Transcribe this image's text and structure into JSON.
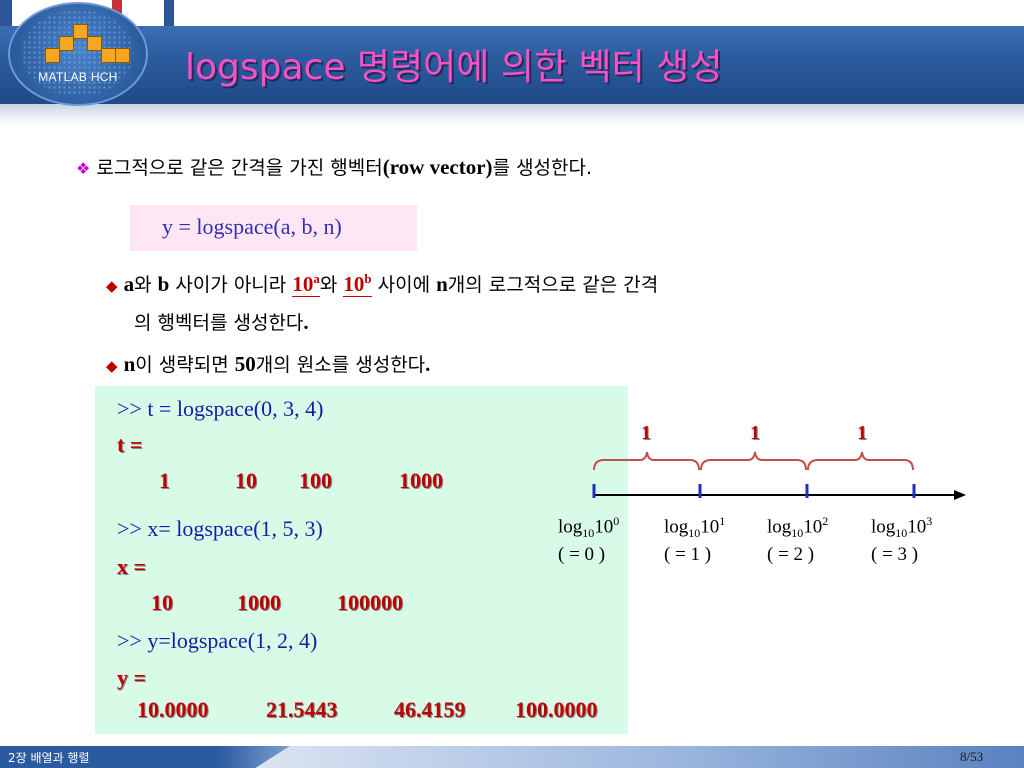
{
  "header": {
    "logo_text": "MATLAB HCH",
    "title": "logspace 명령어에 의한 벡터 생성"
  },
  "intro": {
    "text_ko": "로그적으로 같은 간격을 가진 행벡터",
    "text_en": "(row vector)",
    "text_end": "를 생성한다."
  },
  "formula": "y = logspace(a, b, n)",
  "bullets": {
    "b1": {
      "a": "a",
      "wa": "와 ",
      "b": "b",
      "mid": " 사이가 아니라 ",
      "p1_base": "10",
      "p1_exp": "a",
      "wa2": "와 ",
      "p2_base": "10",
      "p2_exp": "b",
      "mid2": " 사이에 ",
      "n": "n",
      "rest": "개의 로그적으로 같은 간격",
      "line2_ko": "의 행벡터를 생성한다",
      "line2_dot": "."
    },
    "b2": {
      "n": "n",
      "t1": "이 생략되면 ",
      "num": "50",
      "t2": "개의 원소를 생성한다",
      "dot": "."
    }
  },
  "code": {
    "cmd1": ">> t = logspace(0, 3, 4)",
    "var1": "t =",
    "out1": [
      "1",
      "10",
      "100",
      "1000"
    ],
    "cmd2": ">> x= logspace(1, 5, 3)",
    "var2": "x =",
    "out2": [
      "10",
      "1000",
      "100000"
    ],
    "cmd3": ">> y=logspace(1, 2, 4)",
    "var3": "y =",
    "out3": [
      "10.0000",
      "21.5443",
      "46.4159",
      "100.0000"
    ]
  },
  "diagram": {
    "gap_labels": [
      "1",
      "1",
      "1"
    ],
    "ticks": [
      {
        "log": "log",
        "sub": "10",
        "base": "10",
        "exp": "0",
        "eq": "( = 0 )"
      },
      {
        "log": "log",
        "sub": "10",
        "base": "10",
        "exp": "1",
        "eq": "( = 1 )"
      },
      {
        "log": "log",
        "sub": "10",
        "base": "10",
        "exp": "2",
        "eq": "( = 2 )"
      },
      {
        "log": "log",
        "sub": "10",
        "base": "10",
        "exp": "3",
        "eq": "( = 3 )"
      }
    ]
  },
  "footer": {
    "chapter": "2장  배열과 행렬",
    "page": "8/53"
  },
  "colors": {
    "title": "#ff4fc4",
    "header_blue": "#2b5a9d",
    "code_bg": "#d8fbe8",
    "formula_bg": "#ffe6f4",
    "output_red": "#c00000",
    "command_blue": "#1a1aa8",
    "brace_orange": "#c0504d"
  }
}
